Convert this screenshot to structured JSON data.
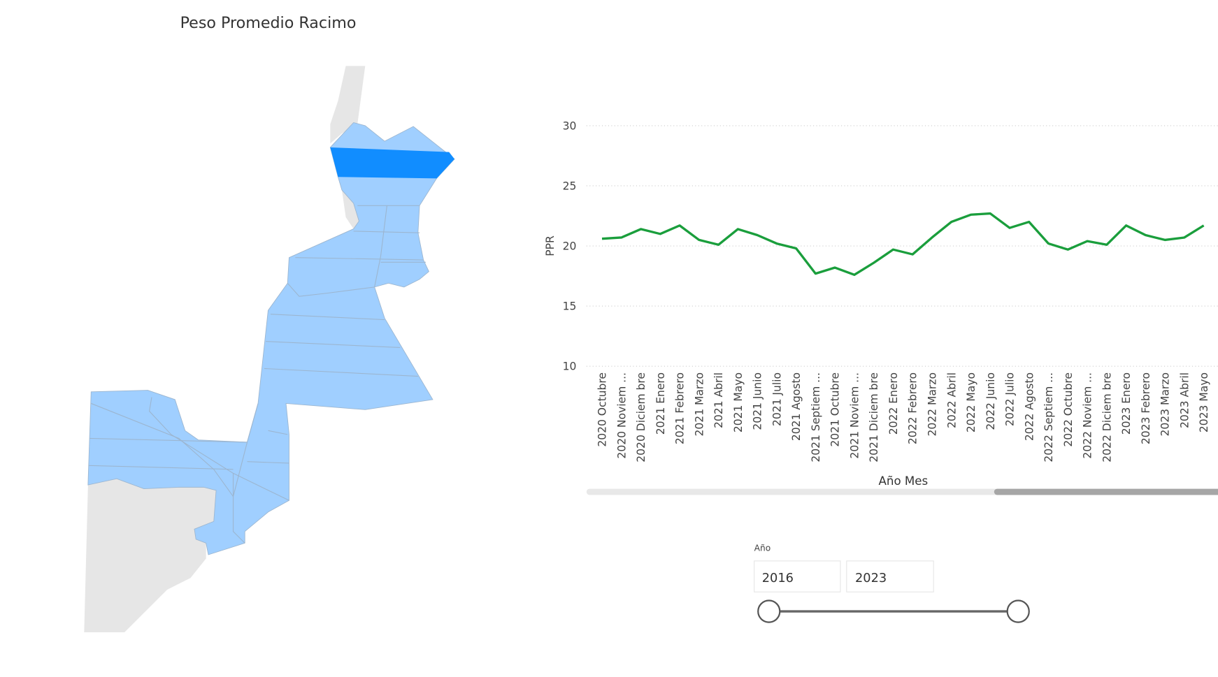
{
  "map": {
    "title": "Peso Promedio Racimo"
  },
  "chart_data": {
    "type": "line",
    "x_label": "Año Mes",
    "y_label": "PPR",
    "categories": [
      "2020 Octubre",
      "2020 Noviem ...",
      "2020 Diciem bre",
      "2021 Enero",
      "2021 Febrero",
      "2021 Marzo",
      "2021 Abril",
      "2021 Mayo",
      "2021 Junio",
      "2021 Julio",
      "2021 Agosto",
      "2021 Septiem ...",
      "2021 Octubre",
      "2021 Noviem ...",
      "2021 Diciem bre",
      "2022 Enero",
      "2022 Febrero",
      "2022 Marzo",
      "2022 Abril",
      "2022 Mayo",
      "2022 Junio",
      "2022 Julio",
      "2022 Agosto",
      "2022 Septiem ...",
      "2022 Octubre",
      "2022 Noviem ...",
      "2022 Diciem bre",
      "2023 Enero",
      "2023 Febrero",
      "2023 Marzo",
      "2023 Abril",
      "2023 Mayo"
    ],
    "values": [
      20.6,
      20.7,
      21.4,
      21.0,
      21.7,
      20.5,
      20.1,
      21.4,
      20.9,
      20.2,
      19.8,
      17.7,
      18.2,
      17.6,
      18.6,
      19.7,
      19.3,
      20.7,
      22.0,
      22.6,
      22.7,
      21.5,
      22.0,
      20.2,
      19.7,
      20.4,
      20.1,
      21.7,
      20.9,
      20.5,
      20.7,
      21.7
    ],
    "color": "#1a9e3c",
    "ylim": [
      10,
      30
    ],
    "yticks": [
      10,
      15,
      20,
      25,
      30
    ],
    "grid": true
  },
  "slicer": {
    "label": "Año",
    "start": "2016",
    "end": "2023"
  }
}
